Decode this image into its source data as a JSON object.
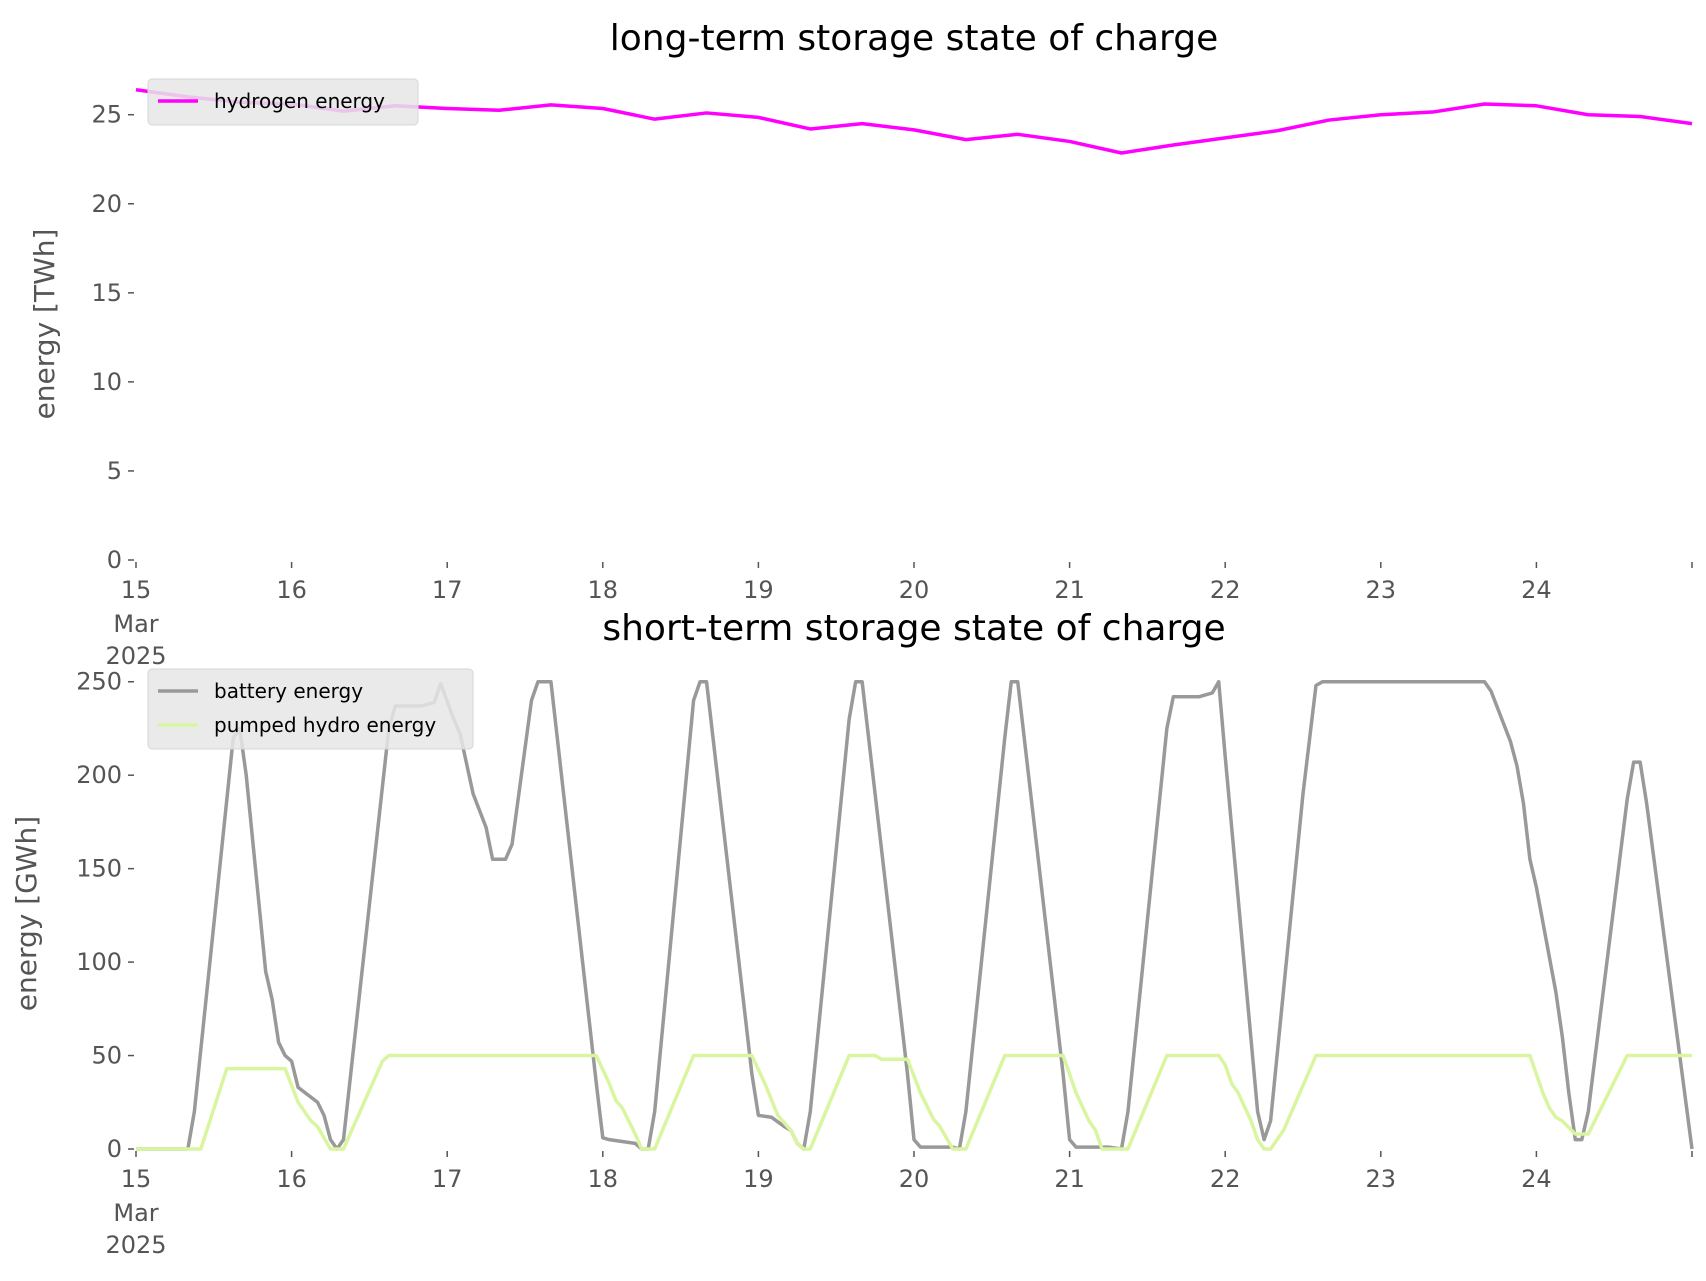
{
  "chart_data": [
    {
      "type": "line",
      "title": "long-term storage state of charge",
      "xlabel": "",
      "ylabel": "energy [TWh]",
      "x_range": [
        "2025-03-15T00:00",
        "2025-03-25T00:00"
      ],
      "x_ticks": [
        {
          "date": "2025-03-15",
          "label": "15",
          "sub1": "Mar",
          "sub2": "2025"
        },
        {
          "date": "2025-03-16",
          "label": "16"
        },
        {
          "date": "2025-03-17",
          "label": "17"
        },
        {
          "date": "2025-03-18",
          "label": "18"
        },
        {
          "date": "2025-03-19",
          "label": "19"
        },
        {
          "date": "2025-03-20",
          "label": "20"
        },
        {
          "date": "2025-03-21",
          "label": "21"
        },
        {
          "date": "2025-03-22",
          "label": "22"
        },
        {
          "date": "2025-03-23",
          "label": "23"
        },
        {
          "date": "2025-03-24",
          "label": "24"
        }
      ],
      "ylim": [
        0,
        26.5
      ],
      "y_ticks": [
        0,
        5,
        10,
        15,
        20,
        25
      ],
      "grid": false,
      "legend": "top-left",
      "series": [
        {
          "name": "hydrogen energy",
          "color": "#ff00ff",
          "points": [
            [
              "2025-03-15T00:00",
              26.4
            ],
            [
              "2025-03-15T08:00",
              26.0
            ],
            [
              "2025-03-15T16:00",
              25.7
            ],
            [
              "2025-03-16T00:00",
              25.6
            ],
            [
              "2025-03-16T08:00",
              25.2
            ],
            [
              "2025-03-16T16:00",
              25.5
            ],
            [
              "2025-03-17T00:00",
              25.35
            ],
            [
              "2025-03-17T08:00",
              25.25
            ],
            [
              "2025-03-17T16:00",
              25.55
            ],
            [
              "2025-03-18T00:00",
              25.35
            ],
            [
              "2025-03-18T08:00",
              24.75
            ],
            [
              "2025-03-18T16:00",
              25.1
            ],
            [
              "2025-03-19T00:00",
              24.85
            ],
            [
              "2025-03-19T08:00",
              24.2
            ],
            [
              "2025-03-19T16:00",
              24.5
            ],
            [
              "2025-03-20T00:00",
              24.15
            ],
            [
              "2025-03-20T08:00",
              23.6
            ],
            [
              "2025-03-20T16:00",
              23.9
            ],
            [
              "2025-03-21T00:00",
              23.5
            ],
            [
              "2025-03-21T08:00",
              22.85
            ],
            [
              "2025-03-21T16:00",
              23.3
            ],
            [
              "2025-03-22T00:00",
              23.7
            ],
            [
              "2025-03-22T08:00",
              24.1
            ],
            [
              "2025-03-22T16:00",
              24.7
            ],
            [
              "2025-03-23T00:00",
              25.0
            ],
            [
              "2025-03-23T08:00",
              25.15
            ],
            [
              "2025-03-23T16:00",
              25.6
            ],
            [
              "2025-03-24T00:00",
              25.5
            ],
            [
              "2025-03-24T08:00",
              25.0
            ],
            [
              "2025-03-24T16:00",
              24.9
            ],
            [
              "2025-03-25T00:00",
              24.5
            ]
          ]
        }
      ]
    },
    {
      "type": "line",
      "title": "short-term storage state of charge",
      "xlabel": "",
      "ylabel": "energy [GWh]",
      "x_range": [
        "2025-03-15T00:00",
        "2025-03-25T00:00"
      ],
      "x_ticks": [
        {
          "date": "2025-03-15",
          "label": "15",
          "sub1": "Mar",
          "sub2": "2025"
        },
        {
          "date": "2025-03-16",
          "label": "16"
        },
        {
          "date": "2025-03-17",
          "label": "17"
        },
        {
          "date": "2025-03-18",
          "label": "18"
        },
        {
          "date": "2025-03-19",
          "label": "19"
        },
        {
          "date": "2025-03-20",
          "label": "20"
        },
        {
          "date": "2025-03-21",
          "label": "21"
        },
        {
          "date": "2025-03-22",
          "label": "22"
        },
        {
          "date": "2025-03-23",
          "label": "23"
        },
        {
          "date": "2025-03-24",
          "label": "24"
        }
      ],
      "ylim": [
        0,
        252
      ],
      "y_ticks": [
        0,
        50,
        100,
        150,
        200,
        250
      ],
      "grid": false,
      "legend": "top-left",
      "series": [
        {
          "name": "battery energy",
          "color": "#999999",
          "points": [
            [
              "2025-03-15T00:00",
              0
            ],
            [
              "2025-03-15T08:00",
              0
            ],
            [
              "2025-03-15T09:00",
              20
            ],
            [
              "2025-03-15T15:00",
              220
            ],
            [
              "2025-03-15T16:00",
              225
            ],
            [
              "2025-03-15T17:00",
              200
            ],
            [
              "2025-03-15T20:00",
              95
            ],
            [
              "2025-03-15T21:00",
              80
            ],
            [
              "2025-03-15T22:00",
              57
            ],
            [
              "2025-03-15T23:00",
              50
            ],
            [
              "2025-03-16T00:00",
              47
            ],
            [
              "2025-03-16T01:00",
              33
            ],
            [
              "2025-03-16T04:00",
              25
            ],
            [
              "2025-03-16T05:00",
              18
            ],
            [
              "2025-03-16T06:00",
              5
            ],
            [
              "2025-03-16T07:00",
              0
            ],
            [
              "2025-03-16T08:00",
              5
            ],
            [
              "2025-03-16T15:00",
              225
            ],
            [
              "2025-03-16T16:00",
              237
            ],
            [
              "2025-03-16T20:00",
              237
            ],
            [
              "2025-03-16T22:00",
              239
            ],
            [
              "2025-03-16T23:00",
              249
            ],
            [
              "2025-03-17T01:00",
              230
            ],
            [
              "2025-03-17T02:00",
              222
            ],
            [
              "2025-03-17T04:00",
              190
            ],
            [
              "2025-03-17T06:00",
              172
            ],
            [
              "2025-03-17T07:00",
              155
            ],
            [
              "2025-03-17T09:00",
              155
            ],
            [
              "2025-03-17T10:00",
              163
            ],
            [
              "2025-03-17T13:00",
              240
            ],
            [
              "2025-03-17T14:00",
              250
            ],
            [
              "2025-03-17T16:00",
              250
            ],
            [
              "2025-03-17T23:00",
              35
            ],
            [
              "2025-03-18T00:00",
              6
            ],
            [
              "2025-03-18T01:00",
              5
            ],
            [
              "2025-03-18T05:00",
              3
            ],
            [
              "2025-03-18T06:00",
              0
            ],
            [
              "2025-03-18T07:00",
              0
            ],
            [
              "2025-03-18T08:00",
              20
            ],
            [
              "2025-03-18T14:00",
              240
            ],
            [
              "2025-03-18T15:00",
              250
            ],
            [
              "2025-03-18T16:00",
              250
            ],
            [
              "2025-03-18T22:00",
              70
            ],
            [
              "2025-03-18T23:00",
              40
            ],
            [
              "2025-03-19T00:00",
              18
            ],
            [
              "2025-03-19T02:00",
              17
            ],
            [
              "2025-03-19T04:00",
              12
            ],
            [
              "2025-03-19T05:00",
              10
            ],
            [
              "2025-03-19T06:00",
              3
            ],
            [
              "2025-03-19T07:00",
              0
            ],
            [
              "2025-03-19T08:00",
              20
            ],
            [
              "2025-03-19T14:00",
              230
            ],
            [
              "2025-03-19T15:00",
              250
            ],
            [
              "2025-03-19T16:00",
              250
            ],
            [
              "2025-03-19T23:00",
              40
            ],
            [
              "2025-03-20T00:00",
              5
            ],
            [
              "2025-03-20T01:00",
              1
            ],
            [
              "2025-03-20T06:00",
              1
            ],
            [
              "2025-03-20T07:00",
              0
            ],
            [
              "2025-03-20T08:00",
              20
            ],
            [
              "2025-03-20T14:00",
              220
            ],
            [
              "2025-03-20T15:00",
              250
            ],
            [
              "2025-03-20T16:00",
              250
            ],
            [
              "2025-03-20T23:00",
              40
            ],
            [
              "2025-03-21T00:00",
              5
            ],
            [
              "2025-03-21T01:00",
              1
            ],
            [
              "2025-03-21T06:00",
              1
            ],
            [
              "2025-03-21T08:00",
              0
            ],
            [
              "2025-03-21T09:00",
              20
            ],
            [
              "2025-03-21T15:00",
              225
            ],
            [
              "2025-03-21T16:00",
              242
            ],
            [
              "2025-03-21T20:00",
              242
            ],
            [
              "2025-03-21T22:00",
              244
            ],
            [
              "2025-03-21T23:00",
              250
            ],
            [
              "2025-03-22T00:00",
              210
            ],
            [
              "2025-03-22T05:00",
              20
            ],
            [
              "2025-03-22T06:00",
              5
            ],
            [
              "2025-03-22T07:00",
              15
            ],
            [
              "2025-03-22T12:00",
              190
            ],
            [
              "2025-03-22T14:00",
              248
            ],
            [
              "2025-03-22T15:00",
              250
            ],
            [
              "2025-03-23T00:00",
              250
            ],
            [
              "2025-03-23T12:00",
              250
            ],
            [
              "2025-03-23T16:00",
              250
            ],
            [
              "2025-03-23T17:00",
              245
            ],
            [
              "2025-03-23T20:00",
              218
            ],
            [
              "2025-03-23T21:00",
              205
            ],
            [
              "2025-03-23T22:00",
              185
            ],
            [
              "2025-03-23T23:00",
              155
            ],
            [
              "2025-03-24T00:00",
              140
            ],
            [
              "2025-03-24T03:00",
              84
            ],
            [
              "2025-03-24T04:00",
              60
            ],
            [
              "2025-03-24T05:00",
              30
            ],
            [
              "2025-03-24T06:00",
              5
            ],
            [
              "2025-03-24T07:00",
              5
            ],
            [
              "2025-03-24T08:00",
              20
            ],
            [
              "2025-03-24T14:00",
              187
            ],
            [
              "2025-03-24T15:00",
              207
            ],
            [
              "2025-03-24T16:00",
              207
            ],
            [
              "2025-03-24T17:00",
              185
            ],
            [
              "2025-03-25T00:00",
              0
            ]
          ]
        },
        {
          "name": "pumped hydro energy",
          "color": "#d9f5a0",
          "points": [
            [
              "2025-03-15T00:00",
              0
            ],
            [
              "2025-03-15T10:00",
              0
            ],
            [
              "2025-03-15T14:00",
              43
            ],
            [
              "2025-03-15T23:00",
              43
            ],
            [
              "2025-03-16T01:00",
              25
            ],
            [
              "2025-03-16T03:00",
              15
            ],
            [
              "2025-03-16T04:00",
              12
            ],
            [
              "2025-03-16T06:00",
              0
            ],
            [
              "2025-03-16T08:00",
              0
            ],
            [
              "2025-03-16T14:00",
              47
            ],
            [
              "2025-03-16T15:00",
              50
            ],
            [
              "2025-03-17T23:00",
              50
            ],
            [
              "2025-03-18T01:00",
              35
            ],
            [
              "2025-03-18T02:00",
              26
            ],
            [
              "2025-03-18T03:00",
              22
            ],
            [
              "2025-03-18T05:00",
              8
            ],
            [
              "2025-03-18T06:00",
              0
            ],
            [
              "2025-03-18T08:00",
              0
            ],
            [
              "2025-03-18T14:00",
              50
            ],
            [
              "2025-03-18T23:00",
              50
            ],
            [
              "2025-03-19T01:00",
              35
            ],
            [
              "2025-03-19T03:00",
              18
            ],
            [
              "2025-03-19T05:00",
              10
            ],
            [
              "2025-03-19T06:00",
              3
            ],
            [
              "2025-03-19T07:00",
              0
            ],
            [
              "2025-03-19T08:00",
              0
            ],
            [
              "2025-03-19T14:00",
              50
            ],
            [
              "2025-03-19T18:00",
              50
            ],
            [
              "2025-03-19T19:00",
              48
            ],
            [
              "2025-03-19T23:00",
              48
            ],
            [
              "2025-03-20T01:00",
              30
            ],
            [
              "2025-03-20T03:00",
              16
            ],
            [
              "2025-03-20T04:00",
              12
            ],
            [
              "2025-03-20T06:00",
              0
            ],
            [
              "2025-03-20T08:00",
              0
            ],
            [
              "2025-03-20T14:00",
              50
            ],
            [
              "2025-03-20T23:00",
              50
            ],
            [
              "2025-03-21T01:00",
              30
            ],
            [
              "2025-03-21T03:00",
              15
            ],
            [
              "2025-03-21T04:00",
              10
            ],
            [
              "2025-03-21T05:00",
              0
            ],
            [
              "2025-03-21T09:00",
              0
            ],
            [
              "2025-03-21T15:00",
              50
            ],
            [
              "2025-03-21T23:00",
              50
            ],
            [
              "2025-03-22T00:00",
              45
            ],
            [
              "2025-03-22T01:00",
              35
            ],
            [
              "2025-03-22T02:00",
              30
            ],
            [
              "2025-03-22T04:00",
              15
            ],
            [
              "2025-03-22T05:00",
              5
            ],
            [
              "2025-03-22T06:00",
              0
            ],
            [
              "2025-03-22T07:00",
              0
            ],
            [
              "2025-03-22T09:00",
              10
            ],
            [
              "2025-03-22T14:00",
              50
            ],
            [
              "2025-03-23T23:00",
              50
            ],
            [
              "2025-03-24T01:00",
              30
            ],
            [
              "2025-03-24T02:00",
              22
            ],
            [
              "2025-03-24T03:00",
              17
            ],
            [
              "2025-03-24T04:00",
              15
            ],
            [
              "2025-03-24T06:00",
              8
            ],
            [
              "2025-03-24T07:00",
              8
            ],
            [
              "2025-03-24T08:00",
              8
            ],
            [
              "2025-03-24T14:00",
              50
            ],
            [
              "2025-03-25T00:00",
              50
            ]
          ]
        }
      ]
    }
  ]
}
